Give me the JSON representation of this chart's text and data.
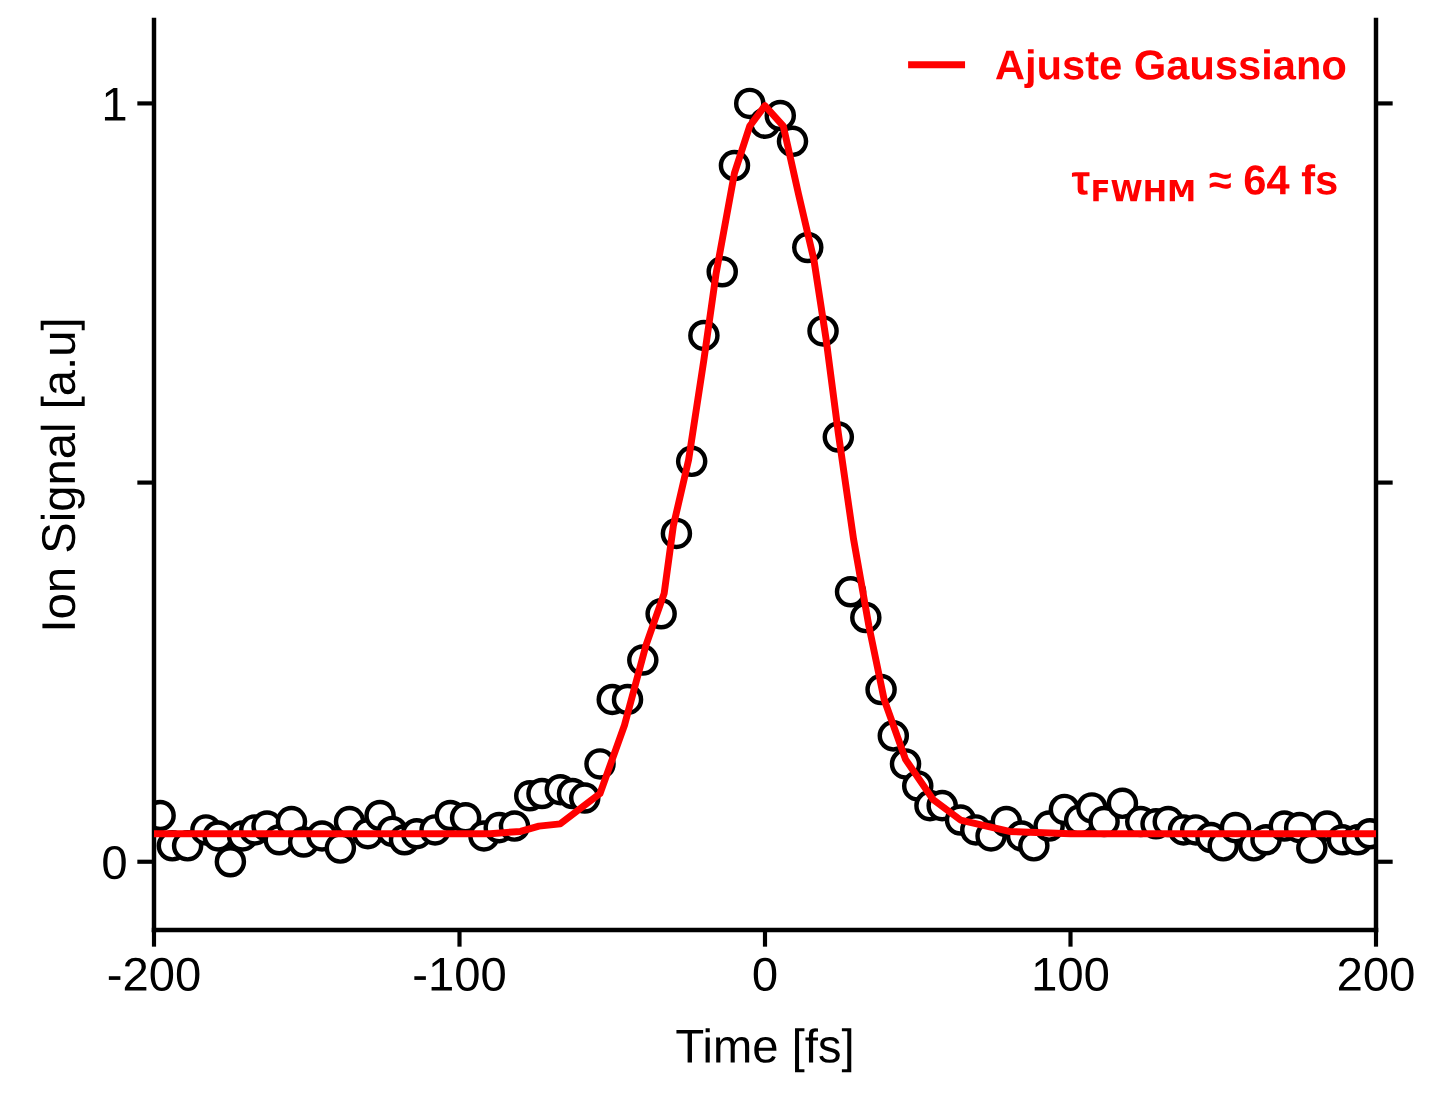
{
  "chart_data": {
    "type": "scatter",
    "xlabel": "Time [fs]",
    "ylabel": "Ion Signal [a.u]",
    "xlim": [
      -200,
      200
    ],
    "xticks": [
      -200,
      -100,
      0,
      100,
      200
    ],
    "ylim": [
      -0.09,
      1.11
    ],
    "yticks": [
      0,
      {
        "value": 0.5,
        "label": null
      },
      1
    ],
    "legend": "top right",
    "grid": false,
    "annotations": [
      "τ$_{FWHM}$ ≈ 64 fs"
    ],
    "series": [
      {
        "marker": "circle",
        "color": "#000000",
        "x": [
          -198,
          -194,
          -189,
          -183,
          -179,
          -175,
          -171,
          -167,
          -163,
          -159,
          -155,
          -151,
          -145,
          -139,
          -136,
          -130,
          -126,
          -122,
          -118,
          -114,
          -108,
          -103,
          -98,
          -92,
          -87,
          -82,
          -77,
          -73,
          -67,
          -63,
          -59,
          -54,
          -50,
          -45,
          -40,
          -34,
          -29,
          -24,
          -20,
          -14,
          -10,
          -5,
          0,
          5,
          9,
          14,
          19,
          24,
          28,
          33,
          38,
          42,
          46,
          50,
          54,
          58,
          64,
          69,
          74,
          79,
          84,
          88,
          93,
          98,
          103,
          107,
          111,
          117,
          123,
          128,
          132,
          137,
          141,
          146,
          150,
          154,
          160,
          164,
          170,
          175,
          179,
          184,
          189,
          194,
          198
        ],
        "values": [
          0.061,
          0.021,
          0.021,
          0.042,
          0.034,
          0.0,
          0.034,
          0.042,
          0.047,
          0.029,
          0.053,
          0.026,
          0.034,
          0.018,
          0.053,
          0.037,
          0.061,
          0.04,
          0.029,
          0.037,
          0.042,
          0.061,
          0.058,
          0.034,
          0.045,
          0.047,
          0.087,
          0.09,
          0.095,
          0.09,
          0.084,
          0.129,
          0.214,
          0.214,
          0.266,
          0.327,
          0.433,
          0.528,
          0.694,
          0.778,
          0.918,
          1.0,
          0.974,
          0.984,
          0.95,
          0.81,
          0.7,
          0.56,
          0.356,
          0.322,
          0.227,
          0.166,
          0.129,
          0.1,
          0.074,
          0.074,
          0.055,
          0.042,
          0.034,
          0.053,
          0.034,
          0.021,
          0.047,
          0.069,
          0.055,
          0.071,
          0.053,
          0.077,
          0.053,
          0.05,
          0.053,
          0.042,
          0.042,
          0.032,
          0.021,
          0.045,
          0.021,
          0.029,
          0.047,
          0.045,
          0.018,
          0.047,
          0.029,
          0.029,
          0.037
        ]
      },
      {
        "type": "line",
        "name": "Ajuste Gaussiano",
        "color": "#ff0000",
        "marker": "none",
        "line_style": "solid",
        "x": [
          -200,
          -100,
          -90,
          -80,
          -74,
          -67,
          -54,
          -46,
          -39,
          -33,
          -30,
          -25,
          -20,
          -16,
          -10,
          -5,
          0,
          6,
          11,
          16,
          20,
          24,
          29,
          34,
          39,
          46,
          55,
          64,
          80,
          100,
          200
        ],
        "values": [
          0.037,
          0.037,
          0.037,
          0.04,
          0.047,
          0.05,
          0.09,
          0.18,
          0.285,
          0.354,
          0.443,
          0.53,
          0.662,
          0.776,
          0.908,
          0.97,
          0.997,
          0.97,
          0.88,
          0.794,
          0.689,
          0.565,
          0.425,
          0.311,
          0.214,
          0.135,
          0.082,
          0.055,
          0.04,
          0.037,
          0.037
        ]
      }
    ]
  }
}
